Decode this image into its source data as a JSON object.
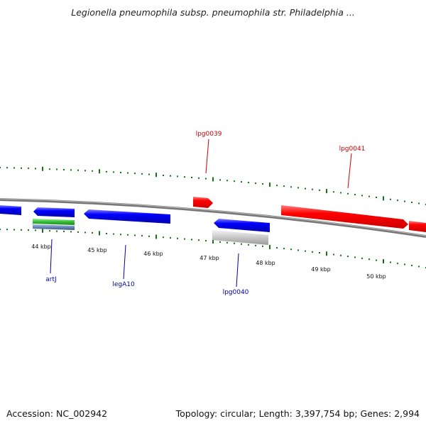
{
  "title": "Legionella pneumophila subsp. pneumophila str. Philadelphia ...",
  "footer": {
    "accession": "Accession: NC_002942",
    "stats": "Topology: circular; Length: 3,397,754 bp; Genes: 2,994"
  },
  "colors": {
    "forward_gene": "#ee0000",
    "reverse_gene": "#0000dd",
    "highlight_gene": "#c8c8c8",
    "feature_green": "#33bb33",
    "feature_steel": "#6688bb",
    "backbone": "#888888",
    "tick": "#117711",
    "label_forward": "#cc0000",
    "label_reverse": "#0000aa"
  },
  "scale_labels": [
    "44 kbp",
    "45 kbp",
    "46 kbp",
    "47 kbp",
    "48 kbp",
    "49 kbp",
    "50 kbp"
  ],
  "gene_labels": [
    "lpg0039",
    "lpg0041",
    "artJ",
    "legA10",
    "lpg0040"
  ]
}
